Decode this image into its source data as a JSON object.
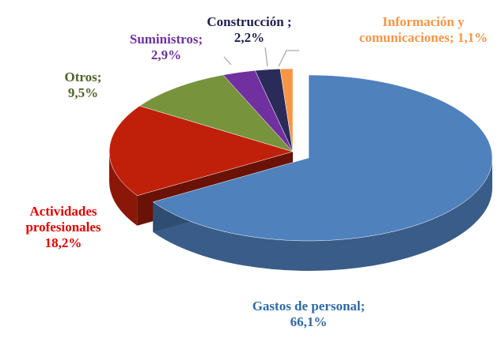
{
  "chart_data": {
    "type": "pie3d",
    "categories": [
      "Gastos de personal;",
      "Actividades profesionales",
      "Otros;",
      "Suministros;",
      "Construcción",
      "Información y comunicaciones;"
    ],
    "values": [
      66.1,
      18.2,
      9.5,
      2.9,
      2.2,
      1.1
    ],
    "value_labels": [
      "66,1%",
      "18,2%",
      "9,5%",
      "2,9%",
      "; 2,2%",
      "1,1%"
    ],
    "colors": [
      "#4f81bd",
      "#c0200a",
      "#77933c",
      "#7030a0",
      "#2b2b5a",
      "#f79646"
    ],
    "label_colors": [
      "#2e6aa8",
      "#e00000",
      "#4f6228",
      "#7030a0",
      "#1f1f4f",
      "#f79646"
    ],
    "exploded": [
      true,
      false,
      false,
      false,
      false,
      false
    ]
  }
}
